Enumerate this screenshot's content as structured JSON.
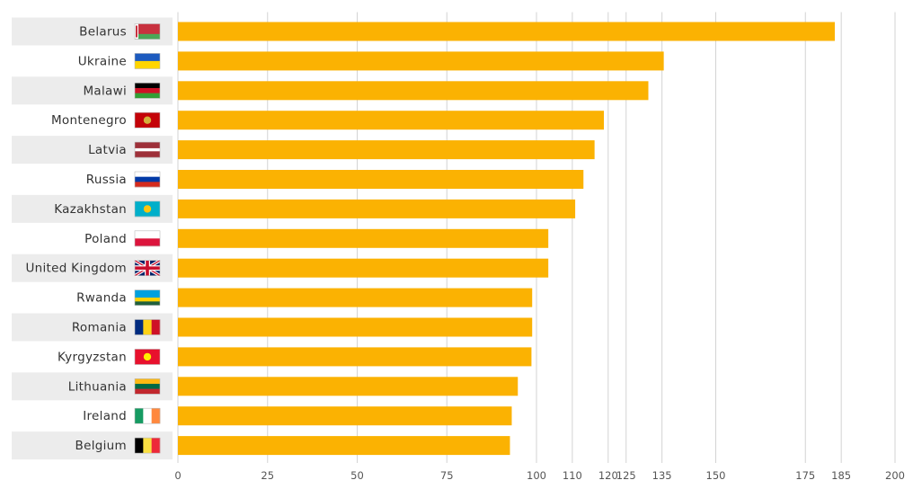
{
  "chart_data": {
    "type": "bar",
    "orientation": "horizontal",
    "categories": [
      "Belarus",
      "Ukraine",
      "Malawi",
      "Montenegro",
      "Latvia",
      "Russia",
      "Kazakhstan",
      "Poland",
      "United Kingdom",
      "Rwanda",
      "Romania",
      "Kyrgyzstan",
      "Lithuania",
      "Ireland",
      "Belgium"
    ],
    "values": [
      183.2,
      135.5,
      131.2,
      118.8,
      116.2,
      113.1,
      110.8,
      103.3,
      103.3,
      98.8,
      98.8,
      98.6,
      94.8,
      93.1,
      92.6
    ],
    "xlim": [
      0,
      200
    ],
    "x_ticks": [
      0,
      25,
      50,
      75,
      100,
      110,
      120,
      125,
      135,
      150,
      175,
      185,
      200
    ],
    "x_tick_labels": [
      "0",
      "25",
      "50",
      "75",
      "100",
      "110",
      "120",
      "125",
      "135",
      "150",
      "175",
      "185",
      "200"
    ],
    "grid": "vertical",
    "bar_color": "#FBB202",
    "row_band_color": "#ECECEC",
    "flags": [
      {
        "country": "Belarus",
        "stripes": "h",
        "colors": [
          "#C8313E",
          "#4AA657"
        ],
        "weights": [
          2,
          1
        ],
        "hoist": "#C8313E"
      },
      {
        "country": "Ukraine",
        "stripes": "h",
        "colors": [
          "#1D5BBF",
          "#FFD500"
        ],
        "weights": [
          1,
          1
        ]
      },
      {
        "country": "Malawi",
        "stripes": "h",
        "colors": [
          "#000000",
          "#CE1126",
          "#339E35"
        ],
        "weights": [
          1,
          1,
          1
        ]
      },
      {
        "country": "Montenegro",
        "stripes": "h",
        "colors": [
          "#C40308"
        ],
        "weights": [
          1
        ],
        "emblem": "#D4AF3A"
      },
      {
        "country": "Latvia",
        "stripes": "h",
        "colors": [
          "#9E3039",
          "#FFFFFF",
          "#9E3039"
        ],
        "weights": [
          2,
          1,
          2
        ]
      },
      {
        "country": "Russia",
        "stripes": "h",
        "colors": [
          "#FFFFFF",
          "#0039A6",
          "#D52B1E"
        ],
        "weights": [
          1,
          1,
          1
        ]
      },
      {
        "country": "Kazakhstan",
        "stripes": "h",
        "colors": [
          "#00AFCA"
        ],
        "weights": [
          1
        ],
        "emblem": "#FEC50C"
      },
      {
        "country": "Poland",
        "stripes": "h",
        "colors": [
          "#FFFFFF",
          "#DC143C"
        ],
        "weights": [
          1,
          1
        ]
      },
      {
        "country": "United Kingdom",
        "stripes": "uk",
        "colors": [
          "#012169",
          "#FFFFFF",
          "#C8102E"
        ],
        "weights": [
          1
        ]
      },
      {
        "country": "Rwanda",
        "stripes": "h",
        "colors": [
          "#00A1DE",
          "#FAD201",
          "#20603D"
        ],
        "weights": [
          2,
          1,
          1
        ]
      },
      {
        "country": "Romania",
        "stripes": "v",
        "colors": [
          "#002B7F",
          "#FCD116",
          "#CE1126"
        ],
        "weights": [
          1,
          1,
          1
        ]
      },
      {
        "country": "Kyrgyzstan",
        "stripes": "h",
        "colors": [
          "#E8112D"
        ],
        "weights": [
          1
        ],
        "emblem": "#FFEF00"
      },
      {
        "country": "Lithuania",
        "stripes": "h",
        "colors": [
          "#FDB913",
          "#006A44",
          "#C1272D"
        ],
        "weights": [
          1,
          1,
          1
        ]
      },
      {
        "country": "Ireland",
        "stripes": "v",
        "colors": [
          "#169B62",
          "#FFFFFF",
          "#FF883E"
        ],
        "weights": [
          1,
          1,
          1
        ]
      },
      {
        "country": "Belgium",
        "stripes": "v",
        "colors": [
          "#000000",
          "#FAE042",
          "#ED2939"
        ],
        "weights": [
          1,
          1,
          1
        ]
      }
    ]
  }
}
